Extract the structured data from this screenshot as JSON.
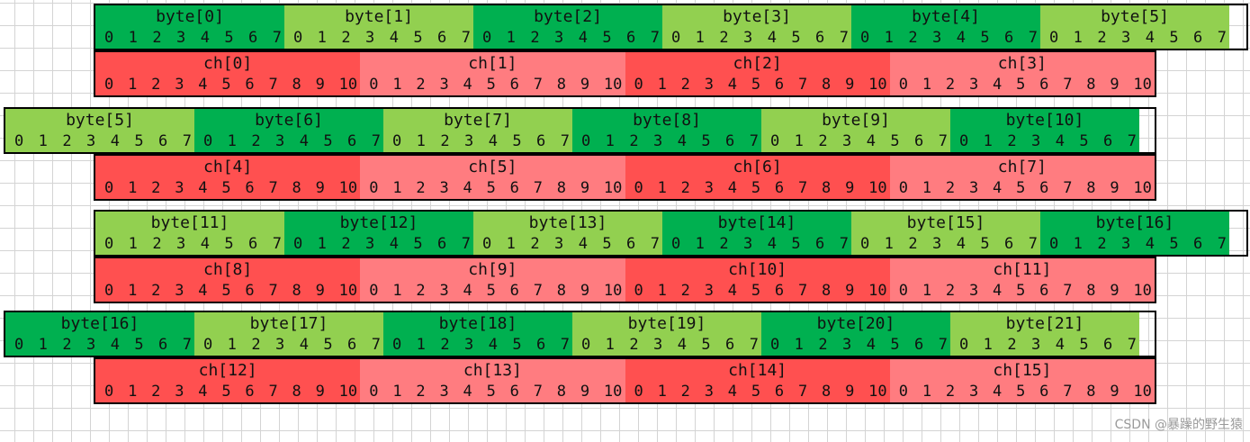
{
  "colors": {
    "byte_dark_green": "#00b050",
    "byte_light_green": "#92d050",
    "ch_dark_red": "#ff5050",
    "ch_light_red": "#ff7c80"
  },
  "rows": [
    {
      "kind": "byte",
      "cells": [
        {
          "label": "byte[0]",
          "color": "byte_dark_green",
          "bits": [
            "0",
            "1",
            "2",
            "3",
            "4",
            "5",
            "6",
            "7"
          ]
        },
        {
          "label": "byte[1]",
          "color": "byte_light_green",
          "bits": [
            "0",
            "1",
            "2",
            "3",
            "4",
            "5",
            "6",
            "7"
          ]
        },
        {
          "label": "byte[2]",
          "color": "byte_dark_green",
          "bits": [
            "0",
            "1",
            "2",
            "3",
            "4",
            "5",
            "6",
            "7"
          ]
        },
        {
          "label": "byte[3]",
          "color": "byte_light_green",
          "bits": [
            "0",
            "1",
            "2",
            "3",
            "4",
            "5",
            "6",
            "7"
          ]
        },
        {
          "label": "byte[4]",
          "color": "byte_dark_green",
          "bits": [
            "0",
            "1",
            "2",
            "3",
            "4",
            "5",
            "6",
            "7"
          ]
        },
        {
          "label": "byte[5]",
          "color": "byte_light_green",
          "bits": [
            "0",
            "1",
            "2",
            "3",
            "4",
            "5",
            "6",
            "7"
          ]
        }
      ]
    },
    {
      "kind": "ch",
      "cells": [
        {
          "label": "ch[0]",
          "color": "ch_dark_red",
          "bits": [
            "0",
            "1",
            "2",
            "3",
            "4",
            "5",
            "6",
            "7",
            "8",
            "9",
            "10"
          ]
        },
        {
          "label": "ch[1]",
          "color": "ch_light_red",
          "bits": [
            "0",
            "1",
            "2",
            "3",
            "4",
            "5",
            "6",
            "7",
            "8",
            "9",
            "10"
          ]
        },
        {
          "label": "ch[2]",
          "color": "ch_dark_red",
          "bits": [
            "0",
            "1",
            "2",
            "3",
            "4",
            "5",
            "6",
            "7",
            "8",
            "9",
            "10"
          ]
        },
        {
          "label": "ch[3]",
          "color": "ch_light_red",
          "bits": [
            "0",
            "1",
            "2",
            "3",
            "4",
            "5",
            "6",
            "7",
            "8",
            "9",
            "10"
          ]
        }
      ]
    },
    {
      "kind": "byte",
      "cells": [
        {
          "label": "byte[5]",
          "color": "byte_light_green",
          "bits": [
            "0",
            "1",
            "2",
            "3",
            "4",
            "5",
            "6",
            "7"
          ]
        },
        {
          "label": "byte[6]",
          "color": "byte_dark_green",
          "bits": [
            "0",
            "1",
            "2",
            "3",
            "4",
            "5",
            "6",
            "7"
          ]
        },
        {
          "label": "byte[7]",
          "color": "byte_light_green",
          "bits": [
            "0",
            "1",
            "2",
            "3",
            "4",
            "5",
            "6",
            "7"
          ]
        },
        {
          "label": "byte[8]",
          "color": "byte_dark_green",
          "bits": [
            "0",
            "1",
            "2",
            "3",
            "4",
            "5",
            "6",
            "7"
          ]
        },
        {
          "label": "byte[9]",
          "color": "byte_light_green",
          "bits": [
            "0",
            "1",
            "2",
            "3",
            "4",
            "5",
            "6",
            "7"
          ]
        },
        {
          "label": "byte[10]",
          "color": "byte_dark_green",
          "bits": [
            "0",
            "1",
            "2",
            "3",
            "4",
            "5",
            "6",
            "7"
          ]
        }
      ]
    },
    {
      "kind": "ch",
      "cells": [
        {
          "label": "ch[4]",
          "color": "ch_dark_red",
          "bits": [
            "0",
            "1",
            "2",
            "3",
            "4",
            "5",
            "6",
            "7",
            "8",
            "9",
            "10"
          ]
        },
        {
          "label": "ch[5]",
          "color": "ch_light_red",
          "bits": [
            "0",
            "1",
            "2",
            "3",
            "4",
            "5",
            "6",
            "7",
            "8",
            "9",
            "10"
          ]
        },
        {
          "label": "ch[6]",
          "color": "ch_dark_red",
          "bits": [
            "0",
            "1",
            "2",
            "3",
            "4",
            "5",
            "6",
            "7",
            "8",
            "9",
            "10"
          ]
        },
        {
          "label": "ch[7]",
          "color": "ch_light_red",
          "bits": [
            "0",
            "1",
            "2",
            "3",
            "4",
            "5",
            "6",
            "7",
            "8",
            "9",
            "10"
          ]
        }
      ]
    },
    {
      "kind": "byte",
      "cells": [
        {
          "label": "byte[11]",
          "color": "byte_light_green",
          "bits": [
            "0",
            "1",
            "2",
            "3",
            "4",
            "5",
            "6",
            "7"
          ]
        },
        {
          "label": "byte[12]",
          "color": "byte_dark_green",
          "bits": [
            "0",
            "1",
            "2",
            "3",
            "4",
            "5",
            "6",
            "7"
          ]
        },
        {
          "label": "byte[13]",
          "color": "byte_light_green",
          "bits": [
            "0",
            "1",
            "2",
            "3",
            "4",
            "5",
            "6",
            "7"
          ]
        },
        {
          "label": "byte[14]",
          "color": "byte_dark_green",
          "bits": [
            "0",
            "1",
            "2",
            "3",
            "4",
            "5",
            "6",
            "7"
          ]
        },
        {
          "label": "byte[15]",
          "color": "byte_light_green",
          "bits": [
            "0",
            "1",
            "2",
            "3",
            "4",
            "5",
            "6",
            "7"
          ]
        },
        {
          "label": "byte[16]",
          "color": "byte_dark_green",
          "bits": [
            "0",
            "1",
            "2",
            "3",
            "4",
            "5",
            "6",
            "7"
          ]
        }
      ]
    },
    {
      "kind": "ch",
      "cells": [
        {
          "label": "ch[8]",
          "color": "ch_dark_red",
          "bits": [
            "0",
            "1",
            "2",
            "3",
            "4",
            "5",
            "6",
            "7",
            "8",
            "9",
            "10"
          ]
        },
        {
          "label": "ch[9]",
          "color": "ch_light_red",
          "bits": [
            "0",
            "1",
            "2",
            "3",
            "4",
            "5",
            "6",
            "7",
            "8",
            "9",
            "10"
          ]
        },
        {
          "label": "ch[10]",
          "color": "ch_dark_red",
          "bits": [
            "0",
            "1",
            "2",
            "3",
            "4",
            "5",
            "6",
            "7",
            "8",
            "9",
            "10"
          ]
        },
        {
          "label": "ch[11]",
          "color": "ch_light_red",
          "bits": [
            "0",
            "1",
            "2",
            "3",
            "4",
            "5",
            "6",
            "7",
            "8",
            "9",
            "10"
          ]
        }
      ]
    },
    {
      "kind": "byte",
      "cells": [
        {
          "label": "byte[16]",
          "color": "byte_dark_green",
          "bits": [
            "0",
            "1",
            "2",
            "3",
            "4",
            "5",
            "6",
            "7"
          ]
        },
        {
          "label": "byte[17]",
          "color": "byte_light_green",
          "bits": [
            "0",
            "1",
            "2",
            "3",
            "4",
            "5",
            "6",
            "7"
          ]
        },
        {
          "label": "byte[18]",
          "color": "byte_dark_green",
          "bits": [
            "0",
            "1",
            "2",
            "3",
            "4",
            "5",
            "6",
            "7"
          ]
        },
        {
          "label": "byte[19]",
          "color": "byte_light_green",
          "bits": [
            "0",
            "1",
            "2",
            "3",
            "4",
            "5",
            "6",
            "7"
          ]
        },
        {
          "label": "byte[20]",
          "color": "byte_dark_green",
          "bits": [
            "0",
            "1",
            "2",
            "3",
            "4",
            "5",
            "6",
            "7"
          ]
        },
        {
          "label": "byte[21]",
          "color": "byte_light_green",
          "bits": [
            "0",
            "1",
            "2",
            "3",
            "4",
            "5",
            "6",
            "7"
          ]
        }
      ]
    },
    {
      "kind": "ch",
      "cells": [
        {
          "label": "ch[12]",
          "color": "ch_dark_red",
          "bits": [
            "0",
            "1",
            "2",
            "3",
            "4",
            "5",
            "6",
            "7",
            "8",
            "9",
            "10"
          ]
        },
        {
          "label": "ch[13]",
          "color": "ch_light_red",
          "bits": [
            "0",
            "1",
            "2",
            "3",
            "4",
            "5",
            "6",
            "7",
            "8",
            "9",
            "10"
          ]
        },
        {
          "label": "ch[14]",
          "color": "ch_dark_red",
          "bits": [
            "0",
            "1",
            "2",
            "3",
            "4",
            "5",
            "6",
            "7",
            "8",
            "9",
            "10"
          ]
        },
        {
          "label": "ch[15]",
          "color": "ch_light_red",
          "bits": [
            "0",
            "1",
            "2",
            "3",
            "4",
            "5",
            "6",
            "7",
            "8",
            "9",
            "10"
          ]
        }
      ]
    }
  ],
  "watermark": "CSDN @暴躁的野生猿"
}
